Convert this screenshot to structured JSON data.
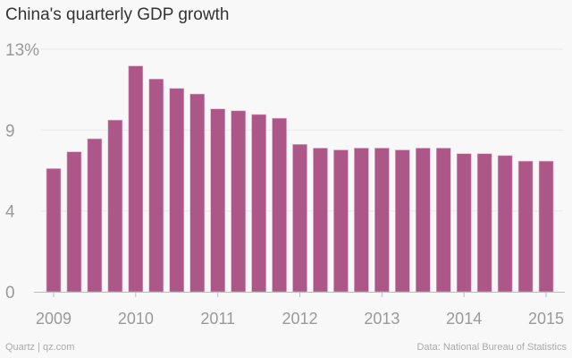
{
  "chart_data": {
    "type": "bar",
    "title": "China's quarterly GDP growth",
    "xlabel": "",
    "ylabel": "",
    "ylim": [
      0,
      13
    ],
    "y_ticks": [
      0,
      4.33,
      8.67,
      13
    ],
    "y_tick_labels": [
      "0",
      "4",
      "9",
      "13%"
    ],
    "x_tick_labels": [
      "2009",
      "2010",
      "2011",
      "2012",
      "2013",
      "2014",
      "2015"
    ],
    "categories": [
      "2009 Q1",
      "2009 Q2",
      "2009 Q3",
      "2009 Q4",
      "2010 Q1",
      "2010 Q2",
      "2010 Q3",
      "2010 Q4",
      "2011 Q1",
      "2011 Q2",
      "2011 Q3",
      "2011 Q4",
      "2012 Q1",
      "2012 Q2",
      "2012 Q3",
      "2012 Q4",
      "2013 Q1",
      "2013 Q2",
      "2013 Q3",
      "2013 Q4",
      "2014 Q1",
      "2014 Q2",
      "2014 Q3",
      "2014 Q4",
      "2015 Q1"
    ],
    "values": [
      6.6,
      7.5,
      8.2,
      9.2,
      12.1,
      11.4,
      10.9,
      10.6,
      9.8,
      9.7,
      9.5,
      9.3,
      7.9,
      7.7,
      7.6,
      7.7,
      7.7,
      7.6,
      7.7,
      7.7,
      7.4,
      7.4,
      7.3,
      7.0,
      7.0
    ],
    "grid": true,
    "color": "#ac5787"
  },
  "footer": {
    "left": "Quartz | qz.com",
    "right": "Data: National Bureau of Statistics"
  }
}
